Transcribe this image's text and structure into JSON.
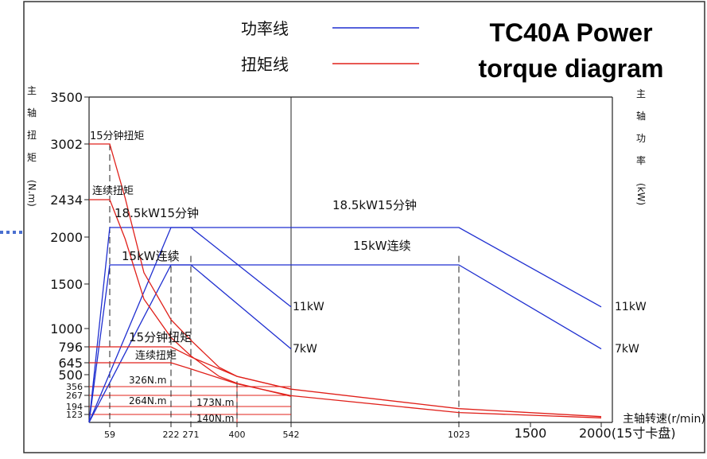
{
  "chart_data": {
    "type": "line",
    "title_lines": [
      "TC40A Power",
      "torque diagram"
    ],
    "legend": {
      "power": {
        "label": "功率线",
        "color": "#1f2fd0"
      },
      "torque": {
        "label": "扭矩线",
        "color": "#e0201a"
      }
    },
    "ylabel_left_chars": [
      "主",
      "轴",
      "扭",
      "矩",
      "(N.m)"
    ],
    "ylabel_right_chars": [
      "主",
      "轴",
      "功",
      "率",
      "(kW)"
    ],
    "xlabel": "主轴转速(r/min)",
    "y_ticks": [
      {
        "value": 123,
        "label": "123"
      },
      {
        "value": 194,
        "label": "194"
      },
      {
        "value": 267,
        "label": "267"
      },
      {
        "value": 356,
        "label": "356"
      },
      {
        "value": 500,
        "label": "500"
      },
      {
        "value": 645,
        "label": "645"
      },
      {
        "value": 796,
        "label": "796"
      },
      {
        "value": 1000,
        "label": "1000"
      },
      {
        "value": 1500,
        "label": "1500"
      },
      {
        "value": 2000,
        "label": "2000"
      },
      {
        "value": 2434,
        "label": "2434"
      },
      {
        "value": 3002,
        "label": "3002"
      },
      {
        "value": 3500,
        "label": "3500"
      }
    ],
    "x_ticks": [
      {
        "value": 59,
        "label": "59"
      },
      {
        "value": 222,
        "label": "222"
      },
      {
        "value": 271,
        "label": "271"
      },
      {
        "value": 400,
        "label": "400"
      },
      {
        "value": 542,
        "label": "542"
      },
      {
        "value": 1023,
        "label": "1023"
      },
      {
        "value": 1500,
        "label": "1500"
      },
      {
        "value": 2000,
        "label": "2000(15寸卡盘)"
      }
    ],
    "xlim": [
      0,
      2000
    ],
    "ylim": [
      0,
      3500
    ],
    "series": [
      {
        "name": "18.5kW15分钟",
        "kind": "power",
        "range": "low",
        "points": [
          [
            0,
            0
          ],
          [
            59,
            18.5
          ],
          [
            271,
            18.5
          ],
          [
            542,
            11
          ]
        ]
      },
      {
        "name": "15kW连续",
        "kind": "power",
        "range": "low",
        "points": [
          [
            0,
            0
          ],
          [
            59,
            15
          ],
          [
            271,
            15
          ],
          [
            542,
            7
          ]
        ]
      },
      {
        "name": "18.5kW15分钟",
        "kind": "power",
        "range": "high",
        "points": [
          [
            0,
            0
          ],
          [
            222,
            18.5
          ],
          [
            1023,
            18.5
          ],
          [
            2000,
            11
          ]
        ]
      },
      {
        "name": "15kW连续",
        "kind": "power",
        "range": "high",
        "points": [
          [
            0,
            0
          ],
          [
            222,
            15
          ],
          [
            1023,
            15
          ],
          [
            2000,
            7
          ]
        ]
      },
      {
        "name": "15分钟扭矩",
        "kind": "torque",
        "range": "low",
        "points": [
          [
            0,
            3002
          ],
          [
            59,
            3002
          ],
          [
            100,
            2450
          ],
          [
            150,
            1620
          ],
          [
            222,
            1100
          ],
          [
            271,
            870
          ],
          [
            350,
            590
          ],
          [
            400,
            480
          ],
          [
            542,
            330
          ]
        ]
      },
      {
        "name": "连续扭矩",
        "kind": "torque",
        "range": "low",
        "points": [
          [
            0,
            2434
          ],
          [
            59,
            2434
          ],
          [
            100,
            1980
          ],
          [
            150,
            1330
          ],
          [
            222,
            900
          ],
          [
            271,
            710
          ],
          [
            350,
            480
          ],
          [
            400,
            395
          ],
          [
            542,
            260
          ]
        ]
      },
      {
        "name": "15分钟扭矩",
        "kind": "torque",
        "range": "high",
        "points": [
          [
            0,
            796
          ],
          [
            222,
            796
          ],
          [
            271,
            700
          ],
          [
            400,
            480
          ],
          [
            542,
            330
          ],
          [
            1023,
            175
          ],
          [
            2000,
            90
          ]
        ]
      },
      {
        "name": "连续扭矩",
        "kind": "torque",
        "range": "high",
        "points": [
          [
            0,
            645
          ],
          [
            222,
            645
          ],
          [
            271,
            570
          ],
          [
            400,
            390
          ],
          [
            542,
            265
          ],
          [
            1023,
            140
          ],
          [
            2000,
            70
          ]
        ]
      }
    ],
    "reference_lines": [
      {
        "torque": 356,
        "to": 542
      },
      {
        "torque": 267,
        "to": 542
      },
      {
        "torque": 194,
        "to": 542
      },
      {
        "torque": 123,
        "to": 542
      }
    ],
    "annotations": {
      "torque15_low": "15分钟扭矩",
      "torque_cont_low": "连续扭矩",
      "power185_low": "18.5kW15分钟",
      "power15_low": "15kW连续",
      "power185_high": "18.5kW15分钟",
      "power15_high": "15kW连续",
      "torque15_high": "15分钟扭矩",
      "torque_cont_high": "连续扭矩",
      "t326": "326N.m",
      "t264": "264N.m",
      "t173": "173N.m",
      "t140": "140N.m",
      "p11_low": "11kW",
      "p7_low": "7kW",
      "p11_high": "11kW",
      "p7_high": "7kW"
    }
  }
}
